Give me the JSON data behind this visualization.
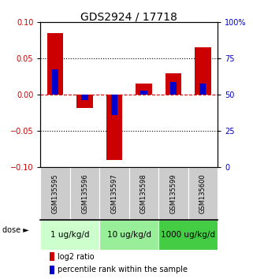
{
  "title": "GDS2924 / 17718",
  "samples": [
    "GSM135595",
    "GSM135596",
    "GSM135597",
    "GSM135598",
    "GSM135599",
    "GSM135600"
  ],
  "log2_ratios": [
    0.085,
    -0.018,
    -0.09,
    0.015,
    0.03,
    0.065
  ],
  "percentile_ranks": [
    0.035,
    -0.008,
    -0.028,
    0.005,
    0.018,
    0.015
  ],
  "dose_groups": [
    {
      "label": "1 ug/kg/d",
      "start": 0,
      "end": 2,
      "color": "#ccffcc"
    },
    {
      "label": "10 ug/kg/d",
      "start": 2,
      "end": 4,
      "color": "#99ee99"
    },
    {
      "label": "1000 ug/kg/d",
      "start": 4,
      "end": 6,
      "color": "#44cc44"
    }
  ],
  "ylim": [
    -0.1,
    0.1
  ],
  "yticks_left": [
    -0.1,
    -0.05,
    0,
    0.05,
    0.1
  ],
  "yticks_right": [
    0,
    25,
    50,
    75,
    100
  ],
  "bar_color_red": "#cc0000",
  "bar_color_blue": "#0000cc",
  "left_axis_color": "#cc0000",
  "right_axis_color": "#0000cc",
  "title_fontsize": 10,
  "tick_fontsize": 7,
  "bar_width": 0.55,
  "blue_bar_width": 0.22,
  "hline_color": "#cc0000",
  "dotted_line_color": "black",
  "sample_label_fontsize": 6,
  "dose_label_fontsize": 7.5,
  "legend_fontsize": 7,
  "sample_box_color": "#cccccc",
  "dose_label_text": "dose ►"
}
